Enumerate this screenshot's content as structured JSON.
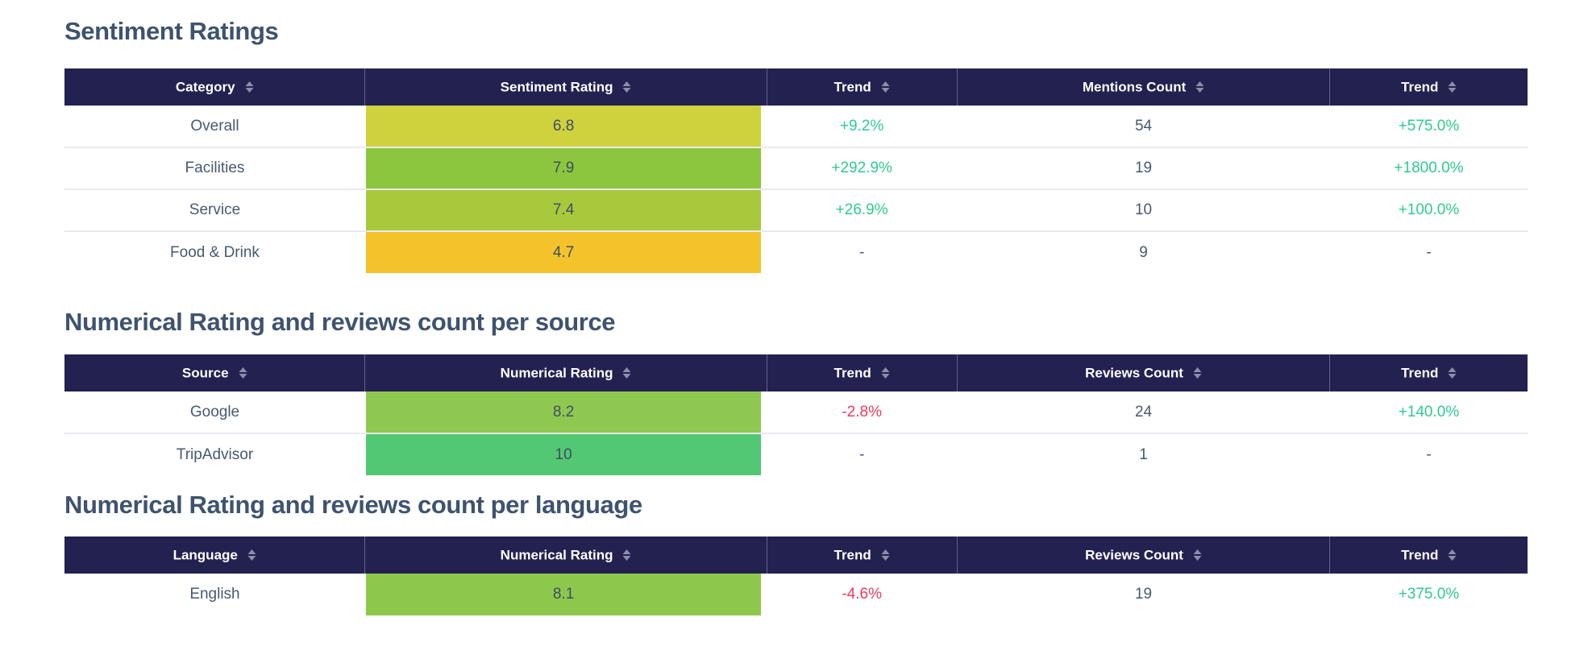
{
  "colors": {
    "header_bg": "#232150",
    "header_text": "#ffffff",
    "title_text": "#3e536d",
    "body_text": "#48596f",
    "positive_trend": "#2ecb8e",
    "negative_trend": "#ec3a5e",
    "sort_icon": "#8a8ea9",
    "row_divider": "#e9e9f0",
    "rating_bar_overall": "#cfd13d",
    "rating_bar_facilities": "#8cc63e",
    "rating_bar_service": "#a9c93c",
    "rating_bar_food_drink": "#f4c32b",
    "rating_bar_google": "#8fc851",
    "rating_bar_tripadvisor": "#53c873",
    "rating_bar_english": "#8dc84c"
  },
  "tables": [
    {
      "title": "Sentiment Ratings",
      "columns": [
        {
          "label": "Category",
          "sortable": true
        },
        {
          "label": "Sentiment Rating",
          "sortable": true
        },
        {
          "label": "Trend",
          "sortable": true
        },
        {
          "label": "Mentions Count",
          "sortable": true
        },
        {
          "label": "Trend",
          "sortable": true
        }
      ],
      "rows": [
        {
          "cells": [
            {
              "type": "label",
              "text": "Overall"
            },
            {
              "type": "rating",
              "text": "6.8",
              "color": "#cfd13d"
            },
            {
              "type": "trend",
              "text": "+9.2%",
              "dir": "up"
            },
            {
              "type": "number",
              "text": "54"
            },
            {
              "type": "trend",
              "text": "+575.0%",
              "dir": "up"
            }
          ]
        },
        {
          "cells": [
            {
              "type": "label",
              "text": "Facilities"
            },
            {
              "type": "rating",
              "text": "7.9",
              "color": "#8cc63e"
            },
            {
              "type": "trend",
              "text": "+292.9%",
              "dir": "up"
            },
            {
              "type": "number",
              "text": "19"
            },
            {
              "type": "trend",
              "text": "+1800.0%",
              "dir": "up"
            }
          ]
        },
        {
          "cells": [
            {
              "type": "label",
              "text": "Service"
            },
            {
              "type": "rating",
              "text": "7.4",
              "color": "#a9c93c"
            },
            {
              "type": "trend",
              "text": "+26.9%",
              "dir": "up"
            },
            {
              "type": "number",
              "text": "10"
            },
            {
              "type": "trend",
              "text": "+100.0%",
              "dir": "up"
            }
          ]
        },
        {
          "cells": [
            {
              "type": "label",
              "text": "Food & Drink"
            },
            {
              "type": "rating",
              "text": "4.7",
              "color": "#f4c32b"
            },
            {
              "type": "trend",
              "text": "-",
              "dir": "none"
            },
            {
              "type": "number",
              "text": "9"
            },
            {
              "type": "trend",
              "text": "-",
              "dir": "none"
            }
          ]
        }
      ]
    },
    {
      "title": "Numerical Rating and reviews count per source",
      "columns": [
        {
          "label": "Source",
          "sortable": true
        },
        {
          "label": "Numerical Rating",
          "sortable": true
        },
        {
          "label": "Trend",
          "sortable": true
        },
        {
          "label": "Reviews Count",
          "sortable": true
        },
        {
          "label": "Trend",
          "sortable": true
        }
      ],
      "rows": [
        {
          "cells": [
            {
              "type": "label",
              "text": "Google"
            },
            {
              "type": "rating",
              "text": "8.2",
              "color": "#8fc851"
            },
            {
              "type": "trend",
              "text": "-2.8%",
              "dir": "down"
            },
            {
              "type": "number",
              "text": "24"
            },
            {
              "type": "trend",
              "text": "+140.0%",
              "dir": "up"
            }
          ]
        },
        {
          "cells": [
            {
              "type": "label",
              "text": "TripAdvisor"
            },
            {
              "type": "rating",
              "text": "10",
              "color": "#53c873"
            },
            {
              "type": "trend",
              "text": "-",
              "dir": "none"
            },
            {
              "type": "number",
              "text": "1"
            },
            {
              "type": "trend",
              "text": "-",
              "dir": "none"
            }
          ]
        }
      ]
    },
    {
      "title": "Numerical Rating and reviews count per language",
      "columns": [
        {
          "label": "Language",
          "sortable": true
        },
        {
          "label": "Numerical Rating",
          "sortable": true
        },
        {
          "label": "Trend",
          "sortable": true
        },
        {
          "label": "Reviews Count",
          "sortable": true
        },
        {
          "label": "Trend",
          "sortable": true
        }
      ],
      "rows": [
        {
          "cells": [
            {
              "type": "label",
              "text": "English"
            },
            {
              "type": "rating",
              "text": "8.1",
              "color": "#8dc84c"
            },
            {
              "type": "trend",
              "text": "-4.6%",
              "dir": "down"
            },
            {
              "type": "number",
              "text": "19"
            },
            {
              "type": "trend",
              "text": "+375.0%",
              "dir": "up"
            }
          ]
        }
      ]
    }
  ]
}
